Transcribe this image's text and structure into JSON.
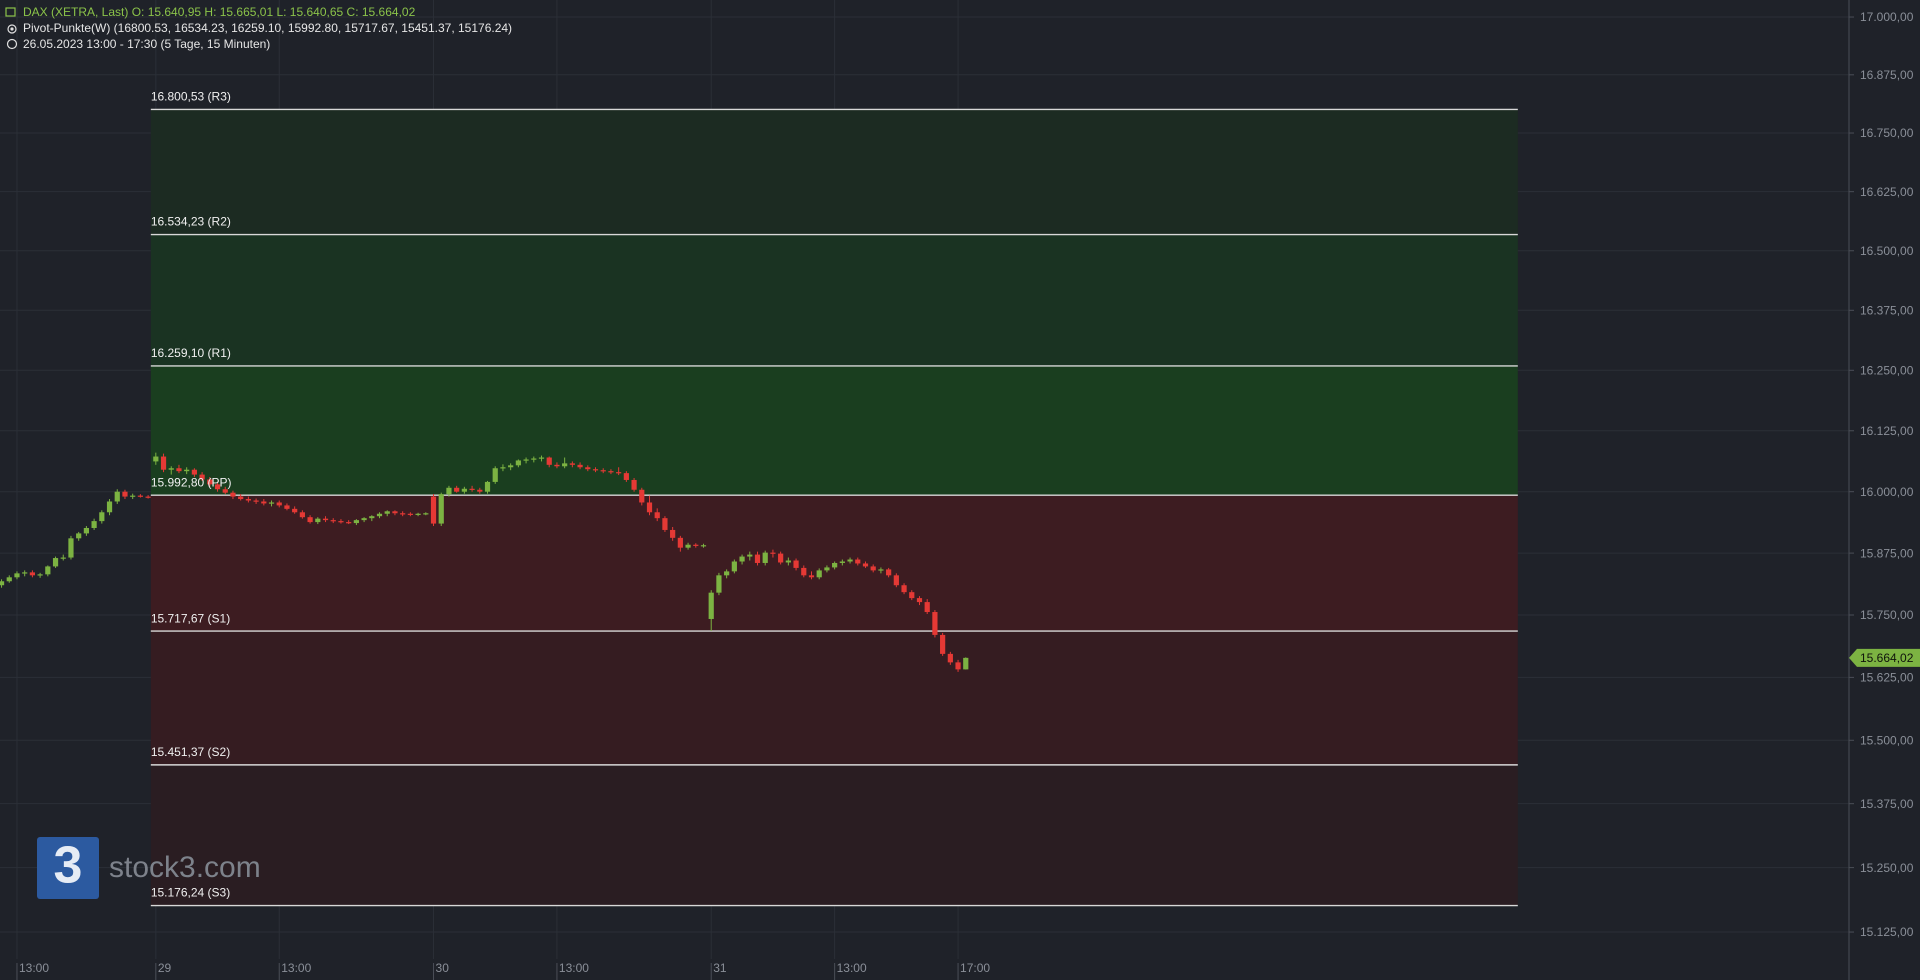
{
  "chart_data": {
    "type": "candlestick",
    "header": {
      "instrument": "DAX (XETRA, Last)  O: 15.640,95  H: 15.665,01  L: 15.640,65  C: 15.664,02",
      "indicator": "Pivot-Punkte(W)  (16800.53,  16534.23,  16259.10,  15992.80,  15717.67,  15451.37,  15176.24)",
      "period": "26.05.2023 13:00 - 17:30   (5 Tage, 15 Minuten)"
    },
    "log_scale": true,
    "grid": true,
    "up_color": "#7cb342",
    "down_color": "#e53935",
    "open": [
      15810,
      15818,
      15826,
      15834,
      15836,
      15830,
      15832,
      15848,
      15865,
      15866,
      15905,
      15915,
      15926,
      15940,
      15958,
      15980,
      16000,
      15990,
      15992,
      15990,
      16062,
      16072,
      16045,
      16048,
      16042,
      16045,
      16035,
      16025,
      16015,
      16005,
      15998,
      15990,
      15985,
      15982,
      15980,
      15976,
      15978,
      15972,
      15965,
      15958,
      15948,
      15938,
      15945,
      15942,
      15940,
      15938,
      15936,
      15942,
      15946,
      15950,
      15955,
      15960,
      15956,
      15955,
      15954,
      15955,
      15990,
      15935,
      15995,
      16008,
      16000,
      16006,
      16004,
      16000,
      16020,
      16048,
      16050,
      16054,
      16064,
      16066,
      16068,
      16070,
      16055,
      16052,
      16058,
      16055,
      16050,
      16046,
      16044,
      16042,
      16040,
      16038,
      16024,
      16004,
      15978,
      15958,
      15946,
      15922,
      15906,
      15886,
      15892,
      15890,
      15742,
      15795,
      15830,
      15838,
      15858,
      15868,
      15872,
      15855,
      15876,
      15874,
      15856,
      15860,
      15845,
      15830,
      15826,
      15840,
      15846,
      15855,
      15858,
      15862,
      15854,
      15848,
      15840,
      15842,
      15830,
      15810,
      15796,
      15784,
      15776,
      15756,
      15710,
      15672,
      15655,
      15640.95
    ],
    "high": [
      15822,
      15830,
      15838,
      15840,
      15840,
      15835,
      15850,
      15868,
      15872,
      15910,
      15918,
      15930,
      15945,
      15962,
      15985,
      16005,
      16004,
      15996,
      15995,
      15993,
      16080,
      16078,
      16052,
      16055,
      16050,
      16048,
      16040,
      16030,
      16020,
      16010,
      16002,
      15995,
      15990,
      15986,
      15985,
      15982,
      15982,
      15976,
      15970,
      15962,
      15952,
      15948,
      15950,
      15946,
      15944,
      15942,
      15944,
      15948,
      15952,
      15958,
      15962,
      15962,
      15960,
      15958,
      15957,
      15958,
      15995,
      15998,
      16012,
      16012,
      16010,
      16012,
      16008,
      16022,
      16052,
      16056,
      16058,
      16066,
      16070,
      16072,
      16074,
      16072,
      16060,
      16070,
      16062,
      16060,
      16054,
      16050,
      16048,
      16046,
      16050,
      16042,
      16028,
      16008,
      15992,
      15966,
      15950,
      15928,
      15910,
      15896,
      15895,
      15894,
      15800,
      15835,
      15842,
      15862,
      15872,
      15878,
      15878,
      15880,
      15882,
      15878,
      15866,
      15864,
      15850,
      15838,
      15844,
      15850,
      15858,
      15862,
      15866,
      15866,
      15858,
      15852,
      15846,
      15845,
      15834,
      15814,
      15800,
      15788,
      15782,
      15760,
      15714,
      15676,
      15660,
      15665.01
    ],
    "low": [
      15805,
      15815,
      15822,
      15828,
      15826,
      15825,
      15828,
      15845,
      15860,
      15862,
      15900,
      15910,
      15922,
      15935,
      15952,
      15975,
      15985,
      15985,
      15988,
      15986,
      16055,
      16040,
      16035,
      16038,
      16036,
      16030,
      16022,
      16010,
      16000,
      15995,
      15985,
      15982,
      15978,
      15975,
      15972,
      15970,
      15968,
      15962,
      15955,
      15945,
      15935,
      15934,
      15938,
      15936,
      15935,
      15934,
      15932,
      15938,
      15940,
      15946,
      15950,
      15952,
      15950,
      15950,
      15950,
      15952,
      15930,
      15930,
      15990,
      15998,
      15996,
      16000,
      15996,
      15996,
      16016,
      16042,
      16044,
      16050,
      16058,
      16060,
      16062,
      16050,
      16048,
      16048,
      16050,
      16046,
      16042,
      16040,
      16038,
      16036,
      16034,
      16020,
      16000,
      15972,
      15952,
      15940,
      15918,
      15900,
      15878,
      15882,
      15886,
      15886,
      15718,
      15790,
      15824,
      15834,
      15852,
      15860,
      15850,
      15850,
      15866,
      15852,
      15850,
      15840,
      15826,
      15822,
      15822,
      15836,
      15842,
      15850,
      15854,
      15850,
      15845,
      15836,
      15834,
      15826,
      15806,
      15792,
      15780,
      15770,
      15752,
      15705,
      15668,
      15650,
      15636,
      15640.65
    ],
    "close": [
      15818,
      15826,
      15834,
      15836,
      15830,
      15832,
      15848,
      15865,
      15866,
      15905,
      15915,
      15926,
      15940,
      15958,
      15980,
      16000,
      15990,
      15992,
      15990,
      15988,
      16072,
      16045,
      16048,
      16042,
      16045,
      16035,
      16025,
      16015,
      16005,
      15998,
      15990,
      15985,
      15982,
      15980,
      15976,
      15978,
      15972,
      15965,
      15958,
      15948,
      15938,
      15945,
      15942,
      15940,
      15938,
      15936,
      15942,
      15946,
      15950,
      15955,
      15960,
      15956,
      15955,
      15954,
      15955,
      15956,
      15935,
      15995,
      16008,
      16000,
      16006,
      16004,
      16000,
      16020,
      16048,
      16050,
      16054,
      16064,
      16066,
      16068,
      16070,
      16055,
      16052,
      16058,
      16055,
      16050,
      16046,
      16044,
      16042,
      16040,
      16038,
      16024,
      16004,
      15978,
      15958,
      15946,
      15922,
      15906,
      15886,
      15892,
      15890,
      15891,
      15795,
      15830,
      15838,
      15858,
      15868,
      15872,
      15855,
      15876,
      15874,
      15856,
      15860,
      15845,
      15830,
      15826,
      15840,
      15846,
      15855,
      15858,
      15862,
      15854,
      15848,
      15840,
      15842,
      15830,
      15810,
      15796,
      15784,
      15776,
      15756,
      15710,
      15672,
      15655,
      15641,
      15664.02
    ],
    "xlim": [
      -0.2,
      239.5
    ],
    "xticks": [
      {
        "value": 2,
        "label": "13:00"
      },
      {
        "value": 20,
        "label": "29"
      },
      {
        "value": 36,
        "label": "13:00"
      },
      {
        "value": 56,
        "label": "30"
      },
      {
        "value": 72,
        "label": "13:00"
      },
      {
        "value": 92,
        "label": "31"
      },
      {
        "value": 108,
        "label": "13:00"
      },
      {
        "value": 124,
        "label": "17:00"
      }
    ],
    "ylim": [
      15073,
      17037
    ],
    "yticks": [
      {
        "value": 17000,
        "label": "17.000,00"
      },
      {
        "value": 16875,
        "label": "16.875,00"
      },
      {
        "value": 16750,
        "label": "16.750,00"
      },
      {
        "value": 16625,
        "label": "16.625,00"
      },
      {
        "value": 16500,
        "label": "16.500,00"
      },
      {
        "value": 16375,
        "label": "16.375,00"
      },
      {
        "value": 16250,
        "label": "16.250,00"
      },
      {
        "value": 16125,
        "label": "16.125,00"
      },
      {
        "value": 16000,
        "label": "16.000,00"
      },
      {
        "value": 15875,
        "label": "15.875,00"
      },
      {
        "value": 15750,
        "label": "15.750,00"
      },
      {
        "value": 15625,
        "label": "15.625,00"
      },
      {
        "value": 15500,
        "label": "15.500,00"
      },
      {
        "value": 15375,
        "label": "15.375,00"
      },
      {
        "value": 15250,
        "label": "15.250,00"
      },
      {
        "value": 15125,
        "label": "15.125,00"
      }
    ],
    "pivots": [
      {
        "value": 16800.53,
        "label": "16.800,53 (R3)"
      },
      {
        "value": 16534.23,
        "label": "16.534,23 (R2)"
      },
      {
        "value": 16259.1,
        "label": "16.259,10 (R1)"
      },
      {
        "value": 15992.8,
        "label": "15.992,80 (PP)"
      },
      {
        "value": 15717.67,
        "label": "15.717,67 (S1)"
      },
      {
        "value": 15451.37,
        "label": "15.451,37 (S2)"
      },
      {
        "value": 15176.24,
        "label": "15.176,24 (S3)"
      }
    ],
    "zone_colors": [
      "#1c2b22",
      "#1a3322",
      "#1a3e1f",
      "#3d1c21",
      "#351c21",
      "#2a1d22"
    ],
    "last_price": {
      "value": 15664.02,
      "label": "15.664,02"
    },
    "logo": {
      "mark": "3",
      "text": "stock3.com"
    }
  }
}
